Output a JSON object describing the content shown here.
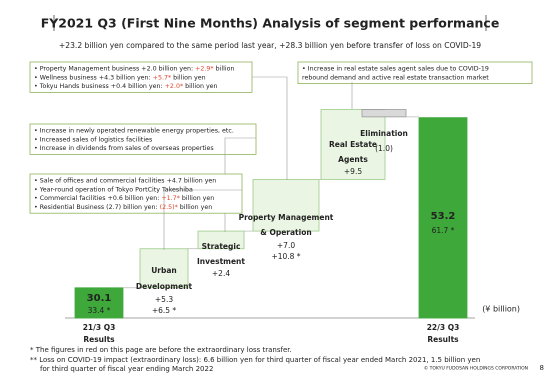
{
  "title": "FY2021 Q3 (First Nine Months) Analysis of segment performance",
  "subtitle": "+23.2 billion yen compared to the same period last year, +28.3 billion yen before transfer of loss on COVID-19",
  "chart_data": {
    "type": "waterfall",
    "categories": [
      [
        "21/3 Q3",
        "Results"
      ],
      [
        "Urban",
        "Development"
      ],
      [
        "Strategic",
        "Investment"
      ],
      [
        "Property Management",
        "& Operation"
      ],
      [
        "Real Estate",
        "Agents"
      ],
      [
        "Elimination"
      ],
      [
        "22/3 Q3",
        "Results"
      ]
    ],
    "measures": [
      "absolute",
      "relative",
      "relative",
      "relative",
      "relative",
      "relative",
      "total"
    ],
    "values": [
      30.1,
      5.3,
      2.4,
      7.0,
      9.5,
      -1.0,
      53.2
    ],
    "value_labels": [
      "30.1",
      "+5.3",
      "+2.4",
      "+7.0",
      "+9.5",
      "(1.0)",
      "53.2"
    ],
    "before_transfer_labels": [
      "33.4 *",
      "+6.5 *",
      null,
      "+10.8 *",
      null,
      null,
      "61.7 *"
    ],
    "ylim": [
      26,
      56
    ],
    "unit_label": "(¥ billion)",
    "colors": {
      "total": "#3ea83a",
      "increase": "#ebf5e4",
      "decrease": "#d9d9d9",
      "highlight": "#e0452c"
    }
  },
  "annotations": [
    {
      "lines": [
        [
          "Property Management business +2.0 billion yen: ",
          "+2.9*",
          " billion"
        ],
        [
          "Wellness business +4.3 billion yen: ",
          "+5.7*",
          " billion yen"
        ],
        [
          "Tokyu Hands business +0.4 billion yen: ",
          "+2.0*",
          " billion yen"
        ]
      ]
    },
    {
      "lines": [
        [
          "Increase in newly operated renewable energy properties, etc."
        ],
        [
          "Increased sales of logistics facilities"
        ],
        [
          "Increase in dividends from sales of overseas properties"
        ]
      ]
    },
    {
      "lines": [
        [
          "Sale of offices and commercial facilities +4.7 billion yen"
        ],
        [
          "Year-round operation of Tokyo PortCity Takeshiba"
        ],
        [
          "Commercial facilities +0.6 billion yen: ",
          "+1.7*",
          " billion yen"
        ],
        [
          "Residential Business (2.7) billion yen: ",
          "(2.5)*",
          " billion yen"
        ]
      ]
    },
    {
      "lines": [
        [
          "Increase in real estate sales agent sales due to COVID-19"
        ],
        [
          "rebound demand and active real estate transaction market"
        ]
      ]
    }
  ],
  "footnotes": [
    "*   The figures in red on this page are before the extraordinary loss transfer.",
    "**  Loss on COVID-19 impact (extraordinary loss): 6.6 billion yen for third quarter of fiscal year ended March 2021, 1.5 billion yen",
    "for third quarter of fiscal year ending March 2022"
  ],
  "copyright": "© TOKYU FUDOSAN HOLDINGS CORPORATION",
  "page_number": "8"
}
